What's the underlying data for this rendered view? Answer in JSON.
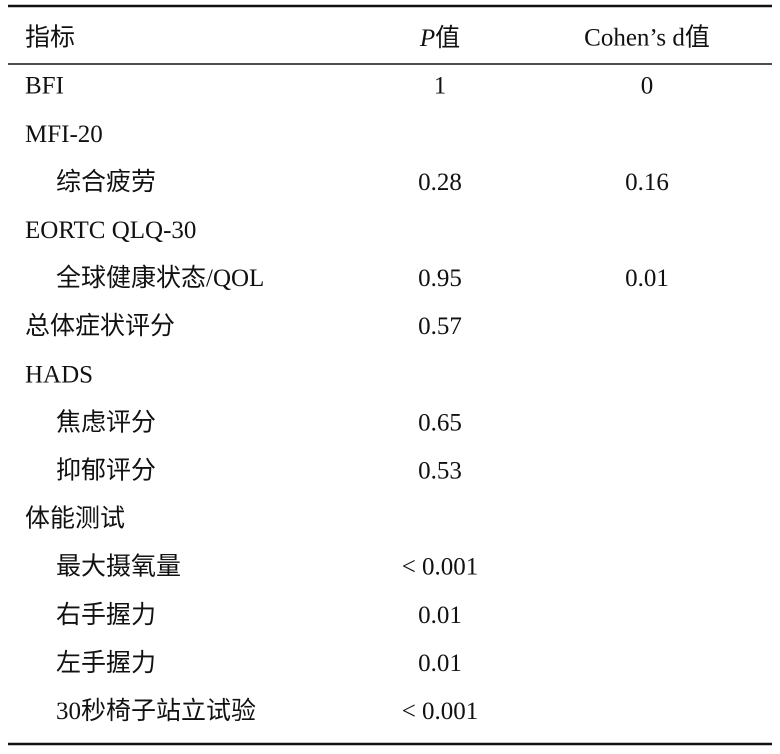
{
  "table": {
    "header": [
      {
        "text": "指标"
      },
      {
        "italic": "P",
        "text": "值"
      },
      {
        "text": "Cohen’s d值"
      }
    ],
    "rows": [
      {
        "level": 0,
        "label": "BFI",
        "p": "1",
        "d": "0"
      },
      {
        "level": 0,
        "label": "MFI-20",
        "p": null,
        "d": null
      },
      {
        "level": 1,
        "label": "综合疲劳",
        "p": "0.28",
        "d": "0.16"
      },
      {
        "level": 0,
        "label": "EORTC QLQ-30",
        "p": null,
        "d": null
      },
      {
        "level": 1,
        "label": "全球健康状态/QOL",
        "p": "0.95",
        "d": "0.01"
      },
      {
        "level": 0,
        "label": "总体症状评分",
        "p": "0.57",
        "d": null
      },
      {
        "level": 0,
        "label": "HADS",
        "p": null,
        "d": null
      },
      {
        "level": 1,
        "label": "焦虑评分",
        "p": "0.65",
        "d": null
      },
      {
        "level": 1,
        "label": "抑郁评分",
        "p": "0.53",
        "d": null
      },
      {
        "level": 0,
        "label": "体能测试",
        "p": null,
        "d": null
      },
      {
        "level": 1,
        "label": "最大摄氧量",
        "p": "< 0.001",
        "d": null
      },
      {
        "level": 1,
        "label": "右手握力",
        "p": "0.01",
        "d": null
      },
      {
        "level": 1,
        "label": "左手握力",
        "p": "0.01",
        "d": null
      },
      {
        "level": 1,
        "label": "30秒椅子站立试验",
        "p": "< 0.001",
        "d": null
      }
    ]
  }
}
